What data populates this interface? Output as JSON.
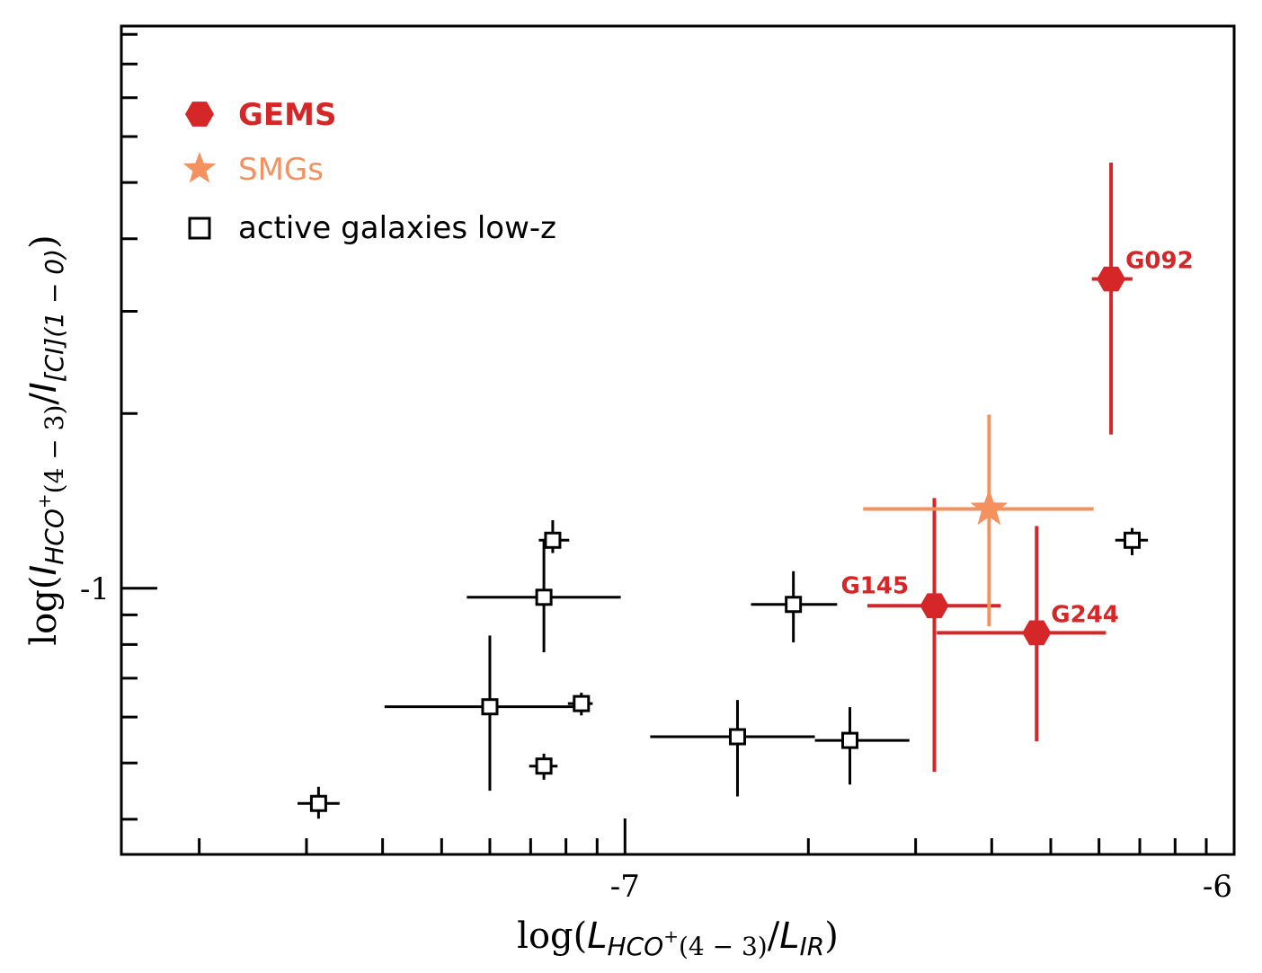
{
  "chart_data": {
    "type": "scatter",
    "xlabel": "log(L_{HCO⁺(4−3)}/L_{IR})",
    "ylabel": "log(I_{HCO⁺(4−3)}/I_{[CI](1−0)})",
    "xlabel_parts": {
      "prefix": "log(",
      "l1": "L",
      "s1": "HCO",
      "sup1": "+",
      "s1b": "(4 − 3)",
      "slash": "/",
      "l2": "L",
      "s2": "IR",
      "suffix": ")"
    },
    "ylabel_parts": {
      "prefix": "log(",
      "l1": "I",
      "s1": "HCO",
      "sup1": "+",
      "s1b": "(4 − 3)",
      "slash": "/",
      "l2": "I",
      "s2": "[CI](1 − 0)",
      "suffix": ")"
    },
    "xscale": "log",
    "yscale": "log",
    "xlim": [
      1.49e-08,
      1e-06
    ],
    "ylim": [
      0.0348,
      0.93
    ],
    "x_ticks": [
      {
        "value": 1e-07,
        "label": "-7"
      },
      {
        "value": 1e-06,
        "label": "-6"
      }
    ],
    "y_ticks": [
      {
        "value": 0.1,
        "label": "-1"
      }
    ],
    "grid": false,
    "legend_position": "top-left",
    "legend": [
      {
        "name": "GEMS",
        "marker": "hexagon",
        "color": "#d62728",
        "bold": true
      },
      {
        "name": "SMGs",
        "marker": "star",
        "color": "#f4915f",
        "bold": false
      },
      {
        "name": "active galaxies low-z",
        "marker": "square-open",
        "color": "#000000",
        "bold": false
      }
    ],
    "series": [
      {
        "name": "GEMS",
        "color": "#d62728",
        "points": [
          {
            "label": "G092",
            "x": 6.28e-07,
            "y": 0.341,
            "xerr": [
              5.84e-07,
              6.81e-07
            ],
            "yerr": [
              0.184,
              0.541
            ]
          },
          {
            "label": "G145",
            "x": 3.22e-07,
            "y": 0.0933,
            "xerr": [
              2.5e-07,
              4.14e-07
            ],
            "yerr": [
              0.0483,
              0.143
            ]
          },
          {
            "label": "G244",
            "x": 4.74e-07,
            "y": 0.0838,
            "xerr": [
              3.25e-07,
              6.16e-07
            ],
            "yerr": [
              0.0545,
              0.128
            ]
          }
        ]
      },
      {
        "name": "SMGs",
        "color": "#f4915f",
        "points": [
          {
            "x": 3.96e-07,
            "y": 0.137,
            "xerr": [
              2.46e-07,
              5.88e-07
            ],
            "yerr": [
              0.086,
              0.199
            ]
          }
        ]
      },
      {
        "name": "active galaxies low-z",
        "color": "#000000",
        "points": [
          {
            "x": 3.14e-08,
            "y": 0.0426,
            "xerr": [
              2.9e-08,
              3.4e-08
            ],
            "yerr": [
              0.0401,
              0.0455
            ]
          },
          {
            "x": 6e-08,
            "y": 0.0625,
            "xerr": [
              4.03e-08,
              8.3e-08
            ],
            "yerr": [
              0.0448,
              0.0829
            ]
          },
          {
            "x": 7.36e-08,
            "y": 0.0965,
            "xerr": [
              5.5e-08,
              9.84e-08
            ],
            "yerr": [
              0.0776,
              0.121
            ]
          },
          {
            "x": 7.61e-08,
            "y": 0.121,
            "xerr": [
              7.22e-08,
              8.1e-08
            ],
            "yerr": [
              0.115,
              0.131
            ]
          },
          {
            "x": 7.36e-08,
            "y": 0.0494,
            "xerr": [
              6.96e-08,
              7.75e-08
            ],
            "yerr": [
              0.0468,
              0.0519
            ]
          },
          {
            "x": 8.48e-08,
            "y": 0.0633,
            "xerr": [
              8.06e-08,
              8.85e-08
            ],
            "yerr": [
              0.0604,
              0.0661
            ]
          },
          {
            "x": 1.89e-07,
            "y": 0.0938,
            "xerr": [
              1.61e-07,
              2.23e-07
            ],
            "yerr": [
              0.0807,
              0.107
            ]
          },
          {
            "x": 1.53e-07,
            "y": 0.0555,
            "xerr": [
              1.1e-07,
              2.05e-07
            ],
            "yerr": [
              0.0438,
              0.0642
            ]
          },
          {
            "x": 2.34e-07,
            "y": 0.0547,
            "xerr": [
              2.05e-07,
              2.93e-07
            ],
            "yerr": [
              0.0459,
              0.0624
            ]
          },
          {
            "x": 6.8e-07,
            "y": 0.121,
            "xerr": [
              6.38e-07,
              7.22e-07
            ],
            "yerr": [
              0.114,
              0.127
            ]
          }
        ]
      }
    ]
  }
}
